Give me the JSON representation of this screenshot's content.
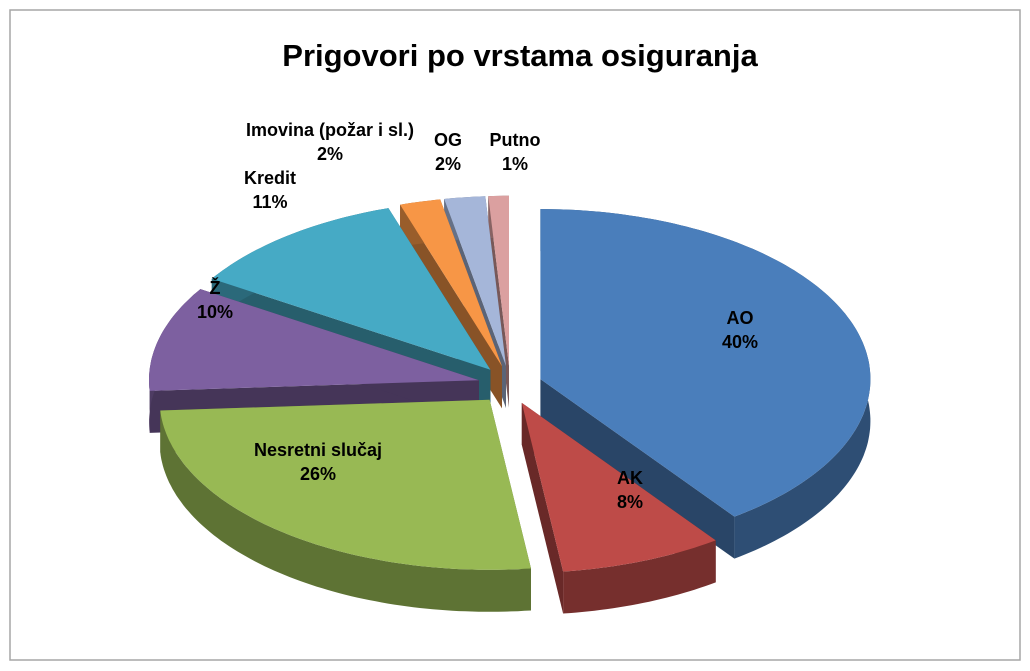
{
  "chart_data": {
    "type": "pie",
    "title": "Prigovori po vrstama osiguranja",
    "categories": [
      "AO",
      "AK",
      "Nesretni slučaj",
      "Ž",
      "Kredit",
      "Imovina (požar i sl.)",
      "OG",
      "Putno"
    ],
    "values": [
      40,
      8,
      26,
      10,
      11,
      2,
      2,
      1
    ],
    "value_labels": [
      "40%",
      "8%",
      "26%",
      "10%",
      "11%",
      "2%",
      "2%",
      "1%"
    ],
    "colors": [
      "#4a7ebb",
      "#be4b48",
      "#98b954",
      "#7d60a0",
      "#46aac5",
      "#f79646",
      "#a5b6d9",
      "#dba0a0"
    ]
  }
}
